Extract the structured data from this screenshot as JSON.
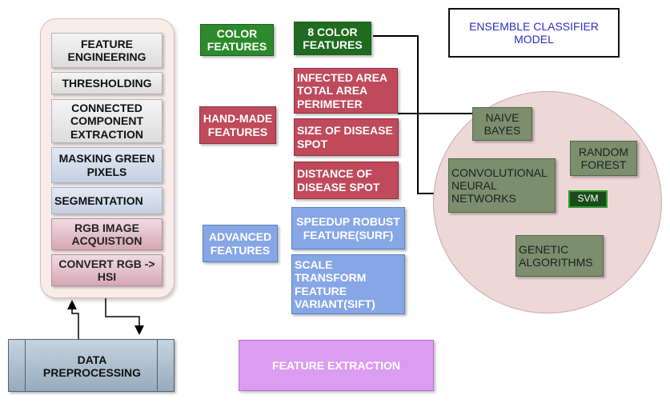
{
  "preprocessing": {
    "steps": [
      "FEATURE ENGINEERING",
      "THRESHOLDING",
      "CONNECTED COMPONENT EXTRACTION",
      "MASKING GREEN PIXELS",
      "SEGMENTATION",
      "RGB IMAGE ACQUISTION",
      "CONVERT RGB -> HSI"
    ],
    "data_preprocessing_label": "DATA PREPROCESSING"
  },
  "features": {
    "color_features": "COLOR FEATURES",
    "eight_color_features": "8 COLOR FEATURES",
    "hand_made_features": "HAND-MADE FEATURES",
    "hand_made_items": [
      "INFECTED AREA TOTAL AREA PERIMETER",
      "SIZE OF DISEASE SPOT",
      "DISTANCE OF DISEASE SPOT"
    ],
    "advanced_features": "ADVANCED FEATURES",
    "advanced_items": [
      "SPEEDUP ROBUST FEATURE(SURF)",
      "SCALE TRANSFORM FEATURE VARIANT(SIFT)"
    ],
    "feature_extraction_label": "FEATURE EXTRACTION"
  },
  "ensemble": {
    "title": "ENSEMBLE CLASSIFIER MODEL",
    "classifiers": {
      "naive_bayes": "NAIVE BAYES",
      "random_forest": "RANDOM FOREST",
      "cnn": "CONVOLUTIONAL NEURAL NETWORKS",
      "svm": "SVM",
      "genetic": "GENETIC ALGORITHMS"
    }
  },
  "colors": {
    "green": "#2c8a2c",
    "hand_made": "#c04a5c",
    "advanced": "#86a6e6",
    "classifier": "#7b8f6e",
    "circle": "#eed7d7",
    "feature_extraction": "#dc9cf0",
    "title_text": "#2f2fc0"
  }
}
